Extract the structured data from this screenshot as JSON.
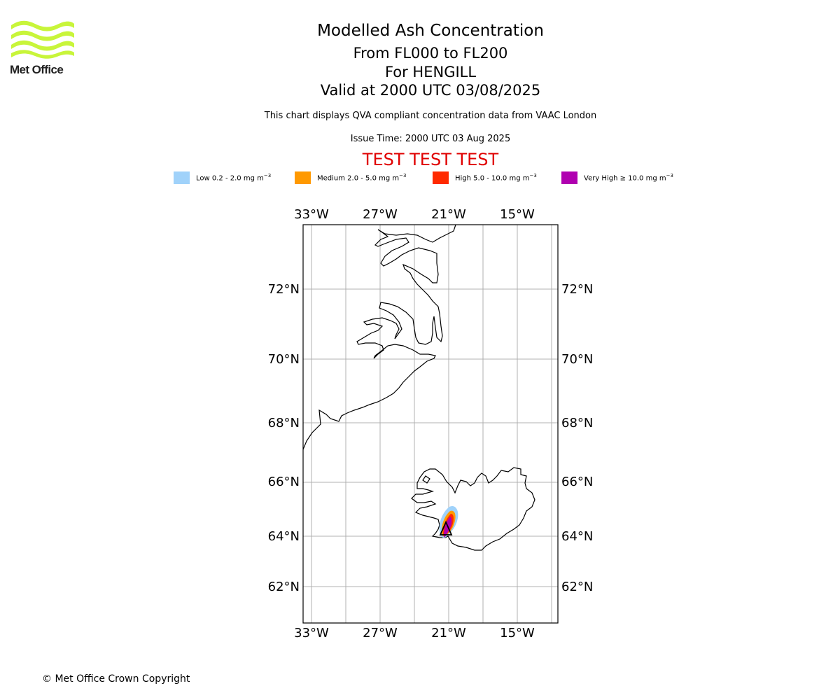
{
  "logo": {
    "text": "Met Office",
    "color": "#c8f53a"
  },
  "header": {
    "title": "Modelled Ash Concentration",
    "levels": "From FL000 to FL200",
    "volcano": "For HENGILL",
    "valid": "Valid at 2000 UTC 03/08/2025",
    "note": "This chart displays QVA compliant concentration data from VAAC London",
    "issue": "Issue Time: 2000 UTC 03 Aug 2025",
    "test_banner": "TEST TEST TEST"
  },
  "legend": [
    {
      "label": "Low 0.2 - 2.0 mg m",
      "unit_sup": "−3",
      "color": "#a0d2fa"
    },
    {
      "label": "Medium 2.0 - 5.0 mg m",
      "unit_sup": "−3",
      "color": "#ff9900"
    },
    {
      "label": "High 5.0 - 10.0 mg m",
      "unit_sup": "−3",
      "color": "#ff2a00"
    },
    {
      "label": "Very High  ≥  10.0 mg m",
      "unit_sup": "−3",
      "color": "#b000b0"
    }
  ],
  "map": {
    "lon_labels": [
      "33°W",
      "27°W",
      "21°W",
      "15°W"
    ],
    "lat_labels": [
      "72°N",
      "70°N",
      "68°N",
      "66°N",
      "64°N",
      "62°N"
    ],
    "grid": true,
    "volcano_marker": "triangle"
  },
  "footer": {
    "copyright": "© Met Office Crown Copyright"
  }
}
